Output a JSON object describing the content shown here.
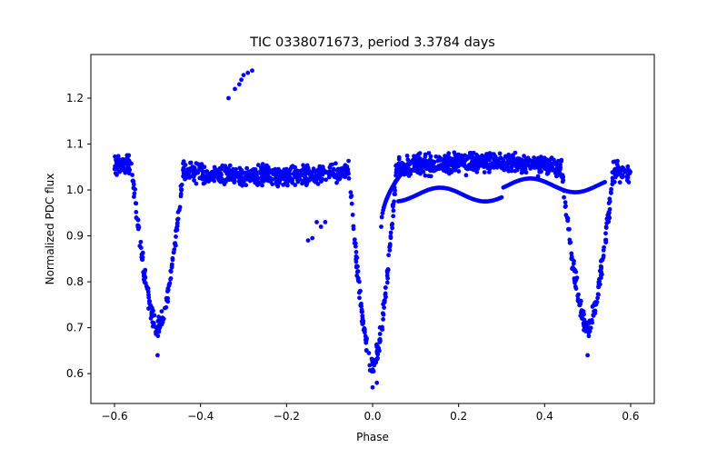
{
  "chart_data": {
    "type": "scatter",
    "title": "TIC 0338071673, period 3.3784 days",
    "xlabel": "Phase",
    "ylabel": "Normalized PDC flux",
    "xlim": [
      -0.655,
      0.655
    ],
    "ylim": [
      0.535,
      1.295
    ],
    "xticks": [
      -0.6,
      -0.4,
      -0.2,
      0.0,
      0.2,
      0.4,
      0.6
    ],
    "xtick_labels": [
      "−0.6",
      "−0.4",
      "−0.2",
      "0.0",
      "0.2",
      "0.4",
      "0.6"
    ],
    "yticks": [
      0.6,
      0.7,
      0.8,
      0.9,
      1.0,
      1.1,
      1.2
    ],
    "ytick_labels": [
      "0.6",
      "0.7",
      "0.8",
      "0.9",
      "1.0",
      "1.1",
      "1.2"
    ],
    "grid": false,
    "series": [
      {
        "name": "phased light curve",
        "color": "#0000ff",
        "marker": "circle",
        "x_range": [
          -0.6,
          0.6
        ],
        "baseline_flux": 1.045,
        "baseline_scatter": 0.03,
        "primary_eclipse": {
          "phase": 0.0,
          "min_flux": 0.61,
          "half_width": 0.055
        },
        "secondary_eclipses": [
          {
            "phase": -0.5,
            "min_flux": 0.7,
            "half_width": 0.06
          },
          {
            "phase": 0.5,
            "min_flux": 0.7,
            "half_width": 0.06
          }
        ],
        "notable_points": [
          {
            "x": -0.32,
            "y": 1.22
          },
          {
            "x": -0.31,
            "y": 1.23
          },
          {
            "x": -0.305,
            "y": 1.24
          },
          {
            "x": -0.3,
            "y": 1.25
          },
          {
            "x": -0.29,
            "y": 1.255
          },
          {
            "x": -0.28,
            "y": 1.26
          },
          {
            "x": -0.335,
            "y": 1.2
          },
          {
            "x": -0.15,
            "y": 0.89
          },
          {
            "x": -0.14,
            "y": 0.895
          },
          {
            "x": -0.12,
            "y": 0.92
          },
          {
            "x": -0.13,
            "y": 0.93
          },
          {
            "x": -0.11,
            "y": 0.93
          },
          {
            "x": 0.0,
            "y": 0.57
          },
          {
            "x": 0.01,
            "y": 0.58
          },
          {
            "x": -0.5,
            "y": 0.64
          },
          {
            "x": 0.5,
            "y": 0.64
          }
        ]
      }
    ]
  }
}
